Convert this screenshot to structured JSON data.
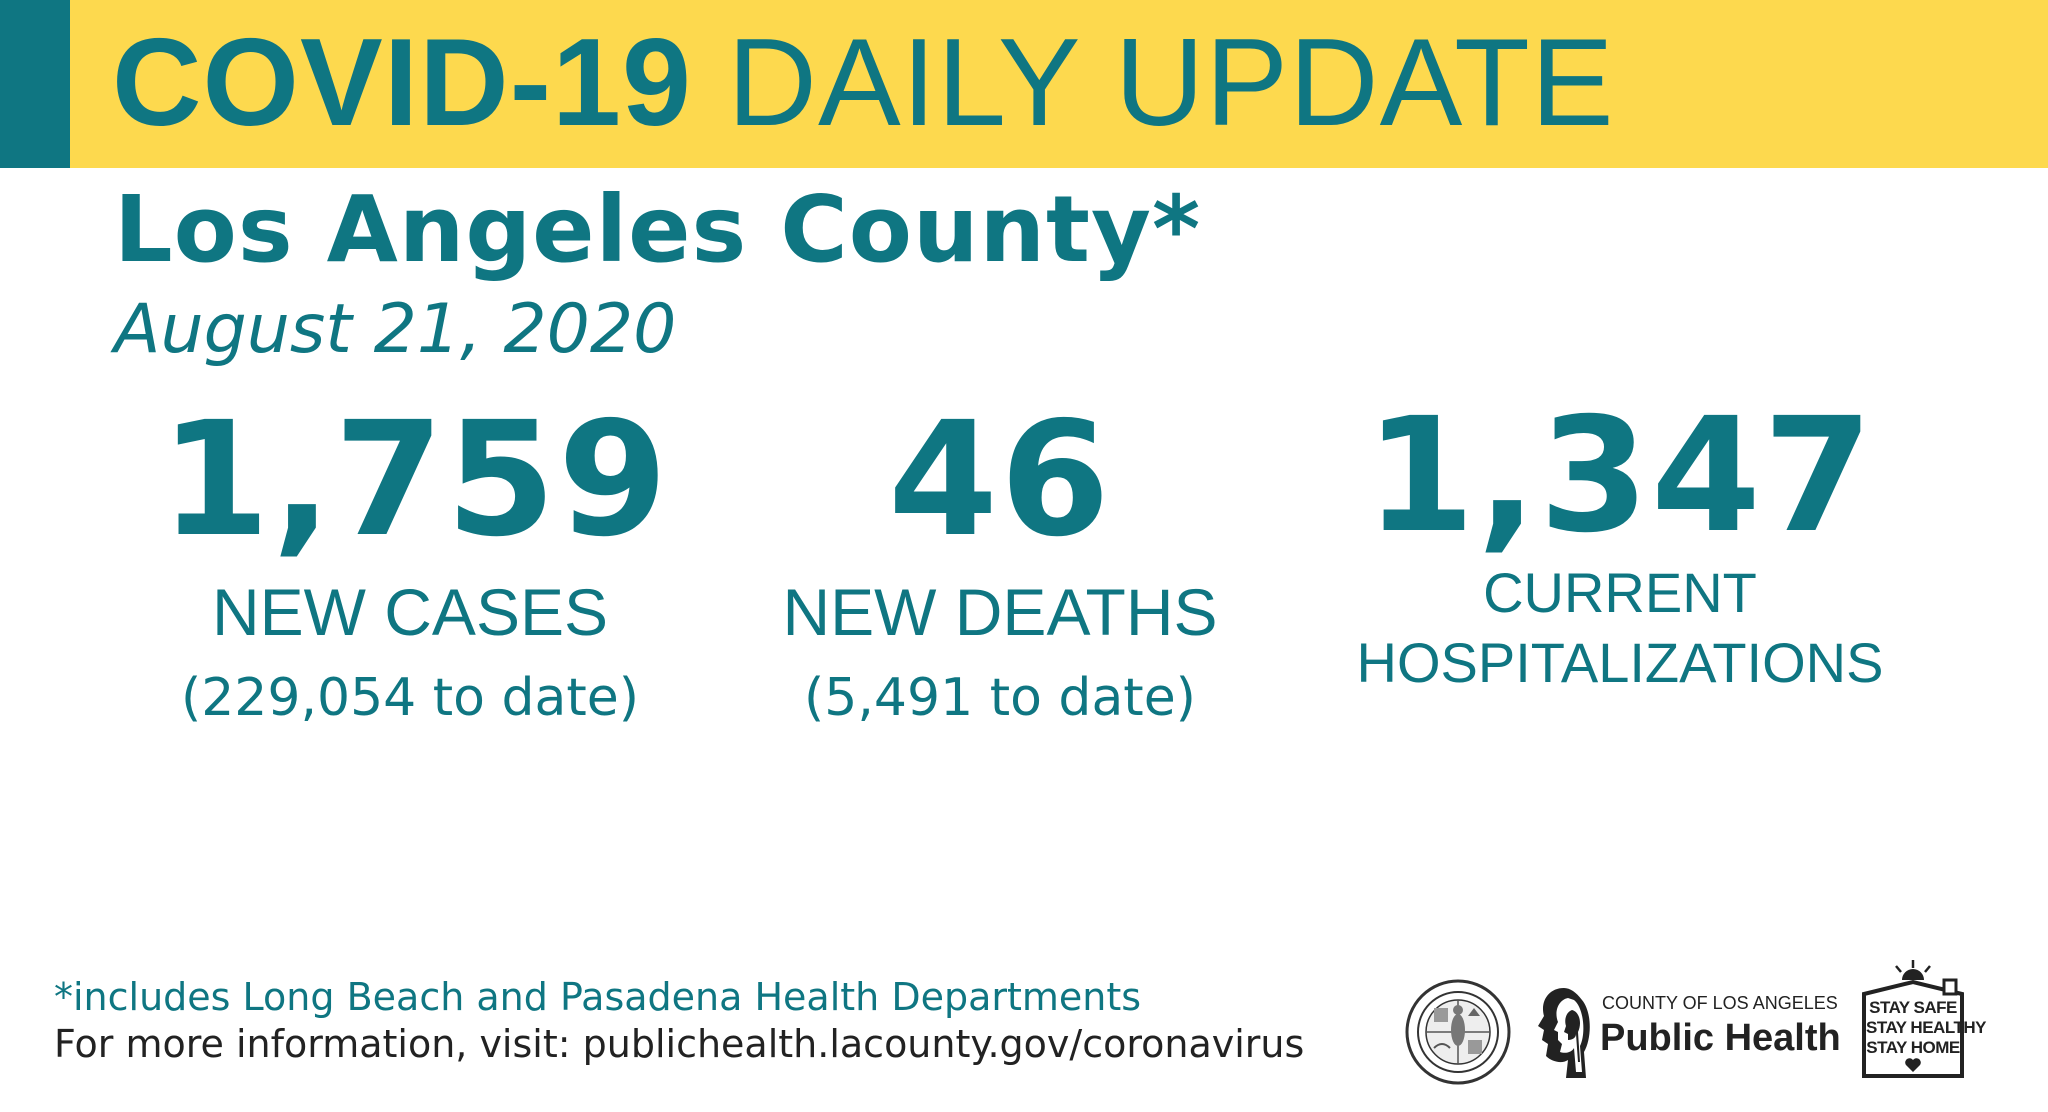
{
  "header": {
    "title_bold": "COVID-19",
    "title_rest": "DAILY UPDATE",
    "background_color": "#fdd94e",
    "accent_color": "#0f7682"
  },
  "region": {
    "name": "Los Angeles County*",
    "date": "August 21, 2020"
  },
  "stats": {
    "cases": {
      "value": "1,759",
      "label": "NEW CASES",
      "to_date": "(229,054 to date)"
    },
    "deaths": {
      "value": "46",
      "label": "NEW DEATHS",
      "to_date": "(5,491 to date)"
    },
    "hospitalizations": {
      "value": "1,347",
      "label_line1": "CURRENT",
      "label_line2": "HOSPITALIZATIONS"
    }
  },
  "footer": {
    "footnote": "*includes Long Beach and Pasadena Health Departments",
    "more_info": "For more information, visit: publichealth.lacounty.gov/coronavirus"
  },
  "logos": {
    "seal_icon": "county-seal-icon",
    "public_health": {
      "small_text": "COUNTY OF LOS ANGELES",
      "big_text": "Public Health",
      "icon": "profile-faces-icon"
    },
    "stay_safe": {
      "line1": "STAY SAFE",
      "line2": "STAY HEALTHY",
      "line3": "STAY HOME",
      "icon": "house-heart-icon"
    }
  }
}
